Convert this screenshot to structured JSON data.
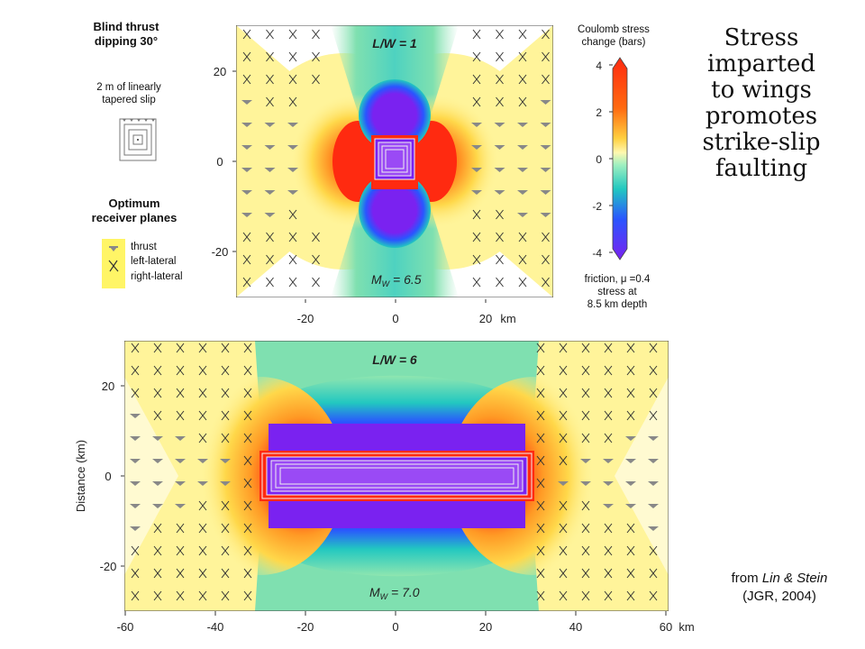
{
  "legend": {
    "source_heading": "Blind thrust\ndipping 30°",
    "slip_caption": "2 m of linearly\ntapered slip",
    "receivers_heading": "Optimum\nreceiver planes",
    "items": [
      "thrust",
      "left-lateral",
      "right-lateral"
    ]
  },
  "colorbar": {
    "title": "Coulomb stress\nchange (bars)",
    "ticks": [
      "4",
      "2",
      "0",
      "-2",
      "-4"
    ],
    "footer": "friction, μ =0.4\nstress at\n8.5 km depth"
  },
  "headline": "Stress\nimparted\nto wings\npromotes\nstrike-slip\nfaulting",
  "citation": {
    "prefix": "from ",
    "authors": "Lin & Stein",
    "journal": "(JGR, 2004)"
  },
  "top_map": {
    "title": "L/W = 1",
    "magnitude": "M",
    "magnitude_sub": "W",
    "magnitude_val": " = 6.5",
    "y_ticks": [
      "20",
      "0",
      "-20"
    ],
    "x_ticks": [
      "-20",
      "0",
      "20"
    ],
    "x_unit": "km"
  },
  "bottom_map": {
    "title": "L/W = 6",
    "magnitude": "M",
    "magnitude_sub": "W",
    "magnitude_val": " = 7.0",
    "y_label": "Distance (km)",
    "y_ticks": [
      "20",
      "0",
      "-20"
    ],
    "x_ticks": [
      "-60",
      "-40",
      "-20",
      "0",
      "20",
      "40",
      "60"
    ],
    "x_unit": "km"
  },
  "colors": {
    "purple": "#7a22f0",
    "blue": "#2a55ff",
    "cyan": "#22c8c0",
    "green": "#6fe0a0",
    "yellow": "#fff49a",
    "orange": "#ffb030",
    "red": "#ff2a10"
  }
}
